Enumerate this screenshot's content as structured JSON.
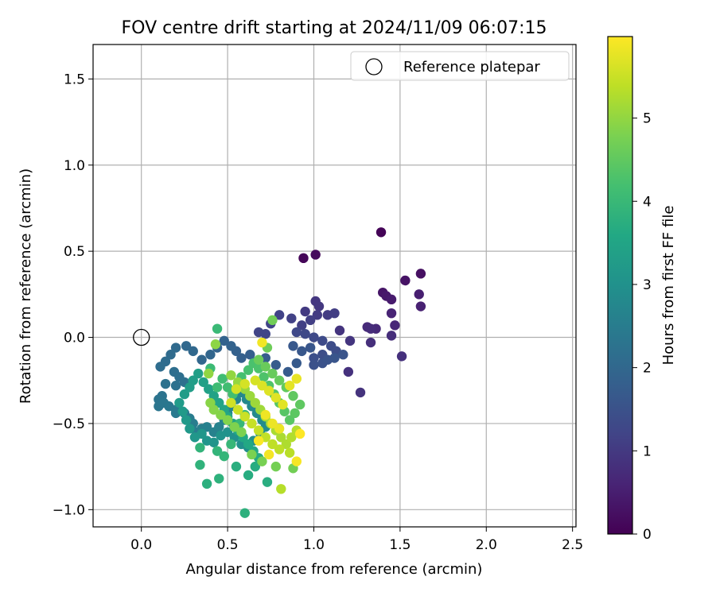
{
  "chart_data": {
    "type": "scatter",
    "title": "FOV centre drift starting at 2024/11/09 06:07:15",
    "xlabel": "Angular distance from reference (arcmin)",
    "ylabel": "Rotation from reference (arcmin)",
    "xlim": [
      -0.28,
      2.52
    ],
    "ylim": [
      -1.1,
      1.7
    ],
    "xticks": [
      0.0,
      0.5,
      1.0,
      1.5,
      2.0,
      2.5
    ],
    "xtick_labels": [
      "0.0",
      "0.5",
      "1.0",
      "1.5",
      "2.0",
      "2.5"
    ],
    "yticks": [
      -1.0,
      -0.5,
      0.0,
      0.5,
      1.0,
      1.5
    ],
    "ytick_labels": [
      "−1.0",
      "−0.5",
      "0.0",
      "0.5",
      "1.0",
      "1.5"
    ],
    "grid": true,
    "legend": {
      "placement": "top-right",
      "entries": [
        "Reference platepar"
      ]
    },
    "reference_point": {
      "x": 0.0,
      "y": 0.0,
      "label": "Reference platepar"
    },
    "colorbar": {
      "label": "Hours from first FF file",
      "range": [
        0,
        5.98
      ],
      "ticks": [
        0,
        1,
        2,
        3,
        4,
        5
      ],
      "tick_labels": [
        "0",
        "1",
        "2",
        "3",
        "4",
        "5"
      ],
      "colormap": "viridis"
    },
    "series": [
      {
        "points": [
          [
            1.39,
            0.61,
            0.05
          ],
          [
            0.94,
            0.46,
            0.08
          ],
          [
            1.01,
            0.48,
            0.15
          ],
          [
            1.62,
            0.37,
            0.25
          ],
          [
            1.53,
            0.33,
            0.3
          ],
          [
            1.4,
            0.26,
            0.35
          ],
          [
            1.42,
            0.24,
            0.4
          ],
          [
            1.45,
            0.22,
            0.45
          ],
          [
            1.61,
            0.25,
            0.5
          ],
          [
            1.62,
            0.18,
            0.55
          ],
          [
            1.45,
            0.14,
            0.6
          ],
          [
            1.47,
            0.07,
            0.65
          ],
          [
            1.36,
            0.05,
            0.7
          ],
          [
            1.31,
            0.06,
            0.72
          ],
          [
            1.33,
            0.05,
            0.75
          ],
          [
            1.45,
            0.01,
            0.78
          ],
          [
            1.33,
            -0.03,
            0.8
          ],
          [
            1.51,
            -0.11,
            0.82
          ],
          [
            1.2,
            -0.2,
            0.85
          ],
          [
            1.27,
            -0.32,
            0.88
          ],
          [
            1.15,
            0.04,
            0.9
          ],
          [
            1.21,
            -0.02,
            0.92
          ],
          [
            1.01,
            0.21,
            0.95
          ],
          [
            1.03,
            0.18,
            0.98
          ],
          [
            0.95,
            0.15,
            1.0
          ],
          [
            1.02,
            0.13,
            1.02
          ],
          [
            1.08,
            0.13,
            1.05
          ],
          [
            1.12,
            0.14,
            1.08
          ],
          [
            0.98,
            0.1,
            1.1
          ],
          [
            0.93,
            0.07,
            1.12
          ],
          [
            0.87,
            0.11,
            1.15
          ],
          [
            0.8,
            0.13,
            1.18
          ],
          [
            0.75,
            0.08,
            1.2
          ],
          [
            0.68,
            0.03,
            1.22
          ],
          [
            0.72,
            0.02,
            1.25
          ],
          [
            0.9,
            0.03,
            1.28
          ],
          [
            0.95,
            0.02,
            1.3
          ],
          [
            1.0,
            0.0,
            1.32
          ],
          [
            1.05,
            -0.02,
            1.35
          ],
          [
            1.1,
            -0.05,
            1.38
          ],
          [
            1.13,
            -0.08,
            1.4
          ],
          [
            1.05,
            -0.1,
            1.42
          ],
          [
            1.0,
            -0.12,
            1.45
          ],
          [
            1.0,
            -0.16,
            1.48
          ],
          [
            1.05,
            -0.15,
            1.5
          ],
          [
            1.08,
            -0.13,
            1.52
          ],
          [
            1.17,
            -0.1,
            1.55
          ],
          [
            1.12,
            -0.12,
            1.58
          ],
          [
            0.98,
            -0.06,
            1.6
          ],
          [
            0.93,
            -0.08,
            1.62
          ],
          [
            0.88,
            -0.05,
            1.65
          ],
          [
            0.9,
            -0.15,
            1.68
          ],
          [
            0.85,
            -0.2,
            1.7
          ],
          [
            0.78,
            -0.16,
            1.72
          ],
          [
            0.72,
            -0.12,
            1.75
          ],
          [
            0.67,
            -0.14,
            1.78
          ],
          [
            0.63,
            -0.1,
            1.8
          ],
          [
            0.58,
            -0.12,
            1.82
          ],
          [
            0.55,
            -0.08,
            1.85
          ],
          [
            0.52,
            -0.05,
            1.88
          ],
          [
            0.48,
            -0.02,
            1.9
          ],
          [
            0.44,
            -0.06,
            1.92
          ],
          [
            0.4,
            -0.1,
            1.95
          ],
          [
            0.35,
            -0.13,
            1.98
          ],
          [
            0.3,
            -0.08,
            2.0
          ],
          [
            0.26,
            -0.05,
            2.02
          ],
          [
            0.2,
            -0.06,
            2.05
          ],
          [
            0.17,
            -0.1,
            2.08
          ],
          [
            0.14,
            -0.14,
            2.1
          ],
          [
            0.11,
            -0.17,
            2.12
          ],
          [
            0.19,
            -0.2,
            2.15
          ],
          [
            0.22,
            -0.23,
            2.18
          ],
          [
            0.25,
            -0.26,
            2.2
          ],
          [
            0.2,
            -0.28,
            2.22
          ],
          [
            0.14,
            -0.27,
            2.25
          ],
          [
            0.12,
            -0.34,
            2.28
          ],
          [
            0.1,
            -0.36,
            2.3
          ],
          [
            0.1,
            -0.4,
            2.32
          ],
          [
            0.13,
            -0.38,
            2.35
          ],
          [
            0.16,
            -0.4,
            2.38
          ],
          [
            0.2,
            -0.42,
            2.4
          ],
          [
            0.2,
            -0.44,
            2.42
          ],
          [
            0.25,
            -0.44,
            2.45
          ],
          [
            0.28,
            -0.47,
            2.48
          ],
          [
            0.3,
            -0.5,
            2.5
          ],
          [
            0.32,
            -0.55,
            2.52
          ],
          [
            0.35,
            -0.53,
            2.55
          ],
          [
            0.38,
            -0.52,
            2.58
          ],
          [
            0.42,
            -0.55,
            2.6
          ],
          [
            0.45,
            -0.52,
            2.62
          ],
          [
            0.48,
            -0.48,
            2.65
          ],
          [
            0.5,
            -0.44,
            2.68
          ],
          [
            0.52,
            -0.4,
            2.7
          ],
          [
            0.55,
            -0.36,
            2.72
          ],
          [
            0.58,
            -0.32,
            2.75
          ],
          [
            0.61,
            -0.36,
            2.78
          ],
          [
            0.64,
            -0.4,
            2.8
          ],
          [
            0.67,
            -0.44,
            2.82
          ],
          [
            0.7,
            -0.48,
            2.85
          ],
          [
            0.72,
            -0.52,
            2.88
          ],
          [
            0.69,
            -0.56,
            2.9
          ],
          [
            0.65,
            -0.6,
            2.92
          ],
          [
            0.62,
            -0.64,
            2.95
          ],
          [
            0.58,
            -0.62,
            2.98
          ],
          [
            0.54,
            -0.58,
            3.0
          ],
          [
            0.5,
            -0.55,
            3.02
          ],
          [
            0.46,
            -0.57,
            3.05
          ],
          [
            0.42,
            -0.61,
            3.08
          ],
          [
            0.38,
            -0.6,
            3.1
          ],
          [
            0.35,
            -0.56,
            3.12
          ],
          [
            0.31,
            -0.58,
            3.15
          ],
          [
            0.28,
            -0.53,
            3.18
          ],
          [
            0.26,
            -0.48,
            3.2
          ],
          [
            0.24,
            -0.43,
            3.22
          ],
          [
            0.22,
            -0.38,
            3.25
          ],
          [
            0.25,
            -0.33,
            3.28
          ],
          [
            0.28,
            -0.29,
            3.3
          ],
          [
            0.3,
            -0.25,
            3.32
          ],
          [
            0.33,
            -0.21,
            3.35
          ],
          [
            0.36,
            -0.26,
            3.38
          ],
          [
            0.39,
            -0.3,
            3.4
          ],
          [
            0.42,
            -0.34,
            3.42
          ],
          [
            0.45,
            -0.38,
            3.45
          ],
          [
            0.48,
            -0.42,
            3.48
          ],
          [
            0.5,
            -0.46,
            3.5
          ],
          [
            0.53,
            -0.5,
            3.52
          ],
          [
            0.56,
            -0.54,
            3.55
          ],
          [
            0.59,
            -0.58,
            3.58
          ],
          [
            0.62,
            -0.62,
            3.6
          ],
          [
            0.65,
            -0.66,
            3.62
          ],
          [
            0.68,
            -0.7,
            3.65
          ],
          [
            0.66,
            -0.75,
            3.68
          ],
          [
            0.62,
            -0.8,
            3.7
          ],
          [
            0.73,
            -0.84,
            3.72
          ],
          [
            0.55,
            -0.75,
            3.75
          ],
          [
            0.38,
            -0.85,
            3.78
          ],
          [
            0.6,
            -1.02,
            3.8
          ],
          [
            0.45,
            -0.82,
            3.82
          ],
          [
            0.34,
            -0.74,
            3.85
          ],
          [
            0.34,
            -0.64,
            3.88
          ],
          [
            0.44,
            -0.66,
            3.9
          ],
          [
            0.48,
            -0.69,
            3.92
          ],
          [
            0.52,
            -0.62,
            3.95
          ],
          [
            0.57,
            -0.5,
            3.98
          ],
          [
            0.6,
            -0.45,
            4.0
          ],
          [
            0.44,
            0.05,
            4.02
          ],
          [
            0.4,
            -0.18,
            4.05
          ],
          [
            0.44,
            -0.29,
            4.08
          ],
          [
            0.47,
            -0.24,
            4.1
          ],
          [
            0.5,
            -0.29,
            4.12
          ],
          [
            0.53,
            -0.33,
            4.15
          ],
          [
            0.56,
            -0.28,
            4.18
          ],
          [
            0.58,
            -0.23,
            4.2
          ],
          [
            0.62,
            -0.19,
            4.22
          ],
          [
            0.65,
            -0.15,
            4.25
          ],
          [
            0.68,
            -0.18,
            4.28
          ],
          [
            0.71,
            -0.23,
            4.3
          ],
          [
            0.74,
            -0.28,
            4.32
          ],
          [
            0.77,
            -0.33,
            4.35
          ],
          [
            0.8,
            -0.38,
            4.38
          ],
          [
            0.83,
            -0.43,
            4.4
          ],
          [
            0.86,
            -0.48,
            4.42
          ],
          [
            0.89,
            -0.44,
            4.45
          ],
          [
            0.92,
            -0.39,
            4.48
          ],
          [
            0.88,
            -0.34,
            4.5
          ],
          [
            0.84,
            -0.29,
            4.52
          ],
          [
            0.8,
            -0.25,
            4.55
          ],
          [
            0.76,
            -0.21,
            4.58
          ],
          [
            0.72,
            -0.17,
            4.6
          ],
          [
            0.68,
            -0.13,
            4.62
          ],
          [
            0.73,
            -0.06,
            4.65
          ],
          [
            0.76,
            0.1,
            4.68
          ],
          [
            0.88,
            -0.76,
            4.7
          ],
          [
            0.78,
            -0.75,
            4.72
          ],
          [
            0.7,
            -0.72,
            4.75
          ],
          [
            0.64,
            -0.68,
            4.78
          ],
          [
            0.58,
            -0.55,
            4.8
          ],
          [
            0.54,
            -0.52,
            4.82
          ],
          [
            0.5,
            -0.48,
            4.85
          ],
          [
            0.46,
            -0.45,
            4.88
          ],
          [
            0.42,
            -0.42,
            4.9
          ],
          [
            0.4,
            -0.38,
            4.92
          ],
          [
            0.43,
            -0.04,
            4.95
          ],
          [
            0.39,
            -0.21,
            4.98
          ],
          [
            0.52,
            -0.22,
            5.0
          ],
          [
            0.56,
            -0.26,
            5.02
          ],
          [
            0.6,
            -0.3,
            5.05
          ],
          [
            0.63,
            -0.34,
            5.08
          ],
          [
            0.66,
            -0.38,
            5.1
          ],
          [
            0.69,
            -0.42,
            5.12
          ],
          [
            0.72,
            -0.46,
            5.15
          ],
          [
            0.75,
            -0.5,
            5.18
          ],
          [
            0.78,
            -0.54,
            5.2
          ],
          [
            0.81,
            -0.58,
            5.22
          ],
          [
            0.84,
            -0.62,
            5.25
          ],
          [
            0.87,
            -0.58,
            5.28
          ],
          [
            0.9,
            -0.54,
            5.3
          ],
          [
            0.81,
            -0.88,
            5.32
          ],
          [
            0.86,
            -0.67,
            5.35
          ],
          [
            0.8,
            -0.65,
            5.38
          ],
          [
            0.76,
            -0.62,
            5.4
          ],
          [
            0.72,
            -0.58,
            5.42
          ],
          [
            0.68,
            -0.54,
            5.45
          ],
          [
            0.64,
            -0.5,
            5.48
          ],
          [
            0.6,
            -0.46,
            5.5
          ],
          [
            0.56,
            -0.42,
            5.52
          ],
          [
            0.52,
            -0.38,
            5.55
          ],
          [
            0.55,
            -0.3,
            5.58
          ],
          [
            0.6,
            -0.27,
            5.6
          ],
          [
            0.66,
            -0.25,
            5.62
          ],
          [
            0.7,
            -0.28,
            5.65
          ],
          [
            0.74,
            -0.31,
            5.68
          ],
          [
            0.78,
            -0.35,
            5.7
          ],
          [
            0.82,
            -0.39,
            5.72
          ],
          [
            0.86,
            -0.28,
            5.75
          ],
          [
            0.9,
            -0.24,
            5.78
          ],
          [
            0.8,
            -0.53,
            5.8
          ],
          [
            0.76,
            -0.5,
            5.82
          ],
          [
            0.72,
            -0.45,
            5.85
          ],
          [
            0.7,
            -0.03,
            5.88
          ],
          [
            0.74,
            -0.68,
            5.9
          ],
          [
            0.9,
            -0.72,
            5.92
          ],
          [
            0.68,
            -0.6,
            5.95
          ],
          [
            0.92,
            -0.56,
            5.98
          ]
        ]
      }
    ]
  }
}
